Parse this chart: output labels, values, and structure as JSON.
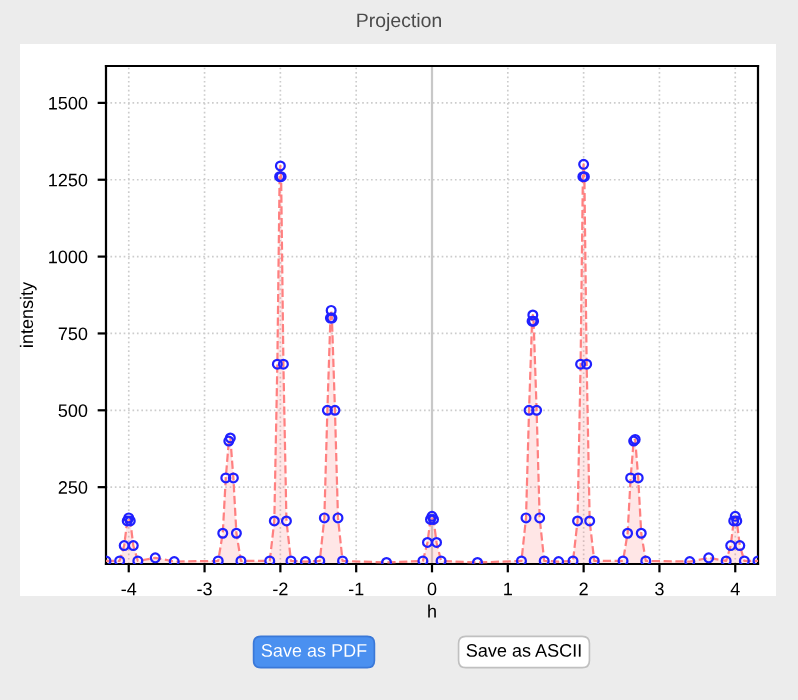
{
  "chart_data": {
    "type": "area",
    "title": "Projection",
    "xlabel": "h",
    "ylabel": "intensity",
    "x": [
      -4.3,
      -4.12,
      -4.06,
      -4.02,
      -4.0,
      -3.98,
      -3.94,
      -3.88,
      -3.65,
      -3.4,
      -2.82,
      -2.76,
      -2.72,
      -2.68,
      -2.66,
      -2.62,
      -2.58,
      -2.52,
      -2.14,
      -2.08,
      -2.04,
      -2.01,
      -2.0,
      -1.99,
      -1.96,
      -1.92,
      -1.86,
      -1.67,
      -1.48,
      -1.42,
      -1.38,
      -1.34,
      -1.33,
      -1.32,
      -1.28,
      -1.24,
      -1.18,
      -0.6,
      -0.12,
      -0.06,
      -0.02,
      0,
      0.02,
      0.06,
      0.12,
      0.6,
      1.18,
      1.24,
      1.28,
      1.32,
      1.33,
      1.34,
      1.38,
      1.42,
      1.48,
      1.67,
      1.86,
      1.92,
      1.96,
      1.99,
      2.0,
      2.01,
      2.04,
      2.08,
      2.14,
      2.52,
      2.58,
      2.62,
      2.66,
      2.68,
      2.72,
      2.76,
      2.82,
      3.4,
      3.65,
      3.88,
      3.94,
      3.98,
      4.0,
      4.02,
      4.06,
      4.12,
      4.3
    ],
    "series": [
      {
        "color": "#ff8080",
        "line_style": "dashed",
        "marker": "none",
        "values": [
          10,
          10,
          60,
          140,
          150,
          140,
          60,
          10,
          20,
          8,
          10,
          100,
          280,
          400,
          410,
          280,
          100,
          10,
          10,
          140,
          650,
          1260,
          1295,
          1260,
          650,
          140,
          10,
          8,
          10,
          150,
          500,
          800,
          825,
          800,
          500,
          150,
          10,
          5,
          10,
          70,
          145,
          155,
          145,
          70,
          10,
          5,
          10,
          150,
          500,
          790,
          810,
          790,
          500,
          150,
          10,
          8,
          10,
          140,
          650,
          1260,
          1300,
          1260,
          650,
          140,
          10,
          10,
          100,
          280,
          400,
          405,
          280,
          100,
          10,
          8,
          20,
          10,
          60,
          140,
          155,
          140,
          60,
          10,
          10
        ]
      },
      {
        "type": "scatter",
        "color": "#2020ff",
        "marker": "circle",
        "values": [
          10,
          10,
          60,
          140,
          150,
          140,
          60,
          10,
          20,
          8,
          10,
          100,
          280,
          400,
          410,
          280,
          100,
          10,
          10,
          140,
          650,
          1260,
          1295,
          1260,
          650,
          140,
          10,
          8,
          10,
          150,
          500,
          800,
          825,
          800,
          500,
          150,
          10,
          5,
          10,
          70,
          145,
          155,
          145,
          70,
          10,
          5,
          10,
          150,
          500,
          790,
          810,
          790,
          500,
          150,
          10,
          8,
          10,
          140,
          650,
          1260,
          1300,
          1260,
          650,
          140,
          10,
          10,
          100,
          280,
          400,
          405,
          280,
          100,
          10,
          8,
          20,
          10,
          60,
          140,
          155,
          140,
          60,
          10,
          10
        ]
      }
    ],
    "xlim": [
      -4.3,
      4.3
    ],
    "ylim": [
      0,
      1620
    ],
    "xticks": [
      -4,
      -3,
      -2,
      -1,
      0,
      1,
      2,
      3,
      4
    ],
    "yticks": [
      250,
      500,
      750,
      1000,
      1250,
      1500
    ],
    "grid": true,
    "ref_lines": [
      {
        "axis": "x",
        "value": 0,
        "color": "#c8c8c8"
      }
    ],
    "annotations": [
      "Save as PDF",
      "Save as ASCII"
    ]
  }
}
